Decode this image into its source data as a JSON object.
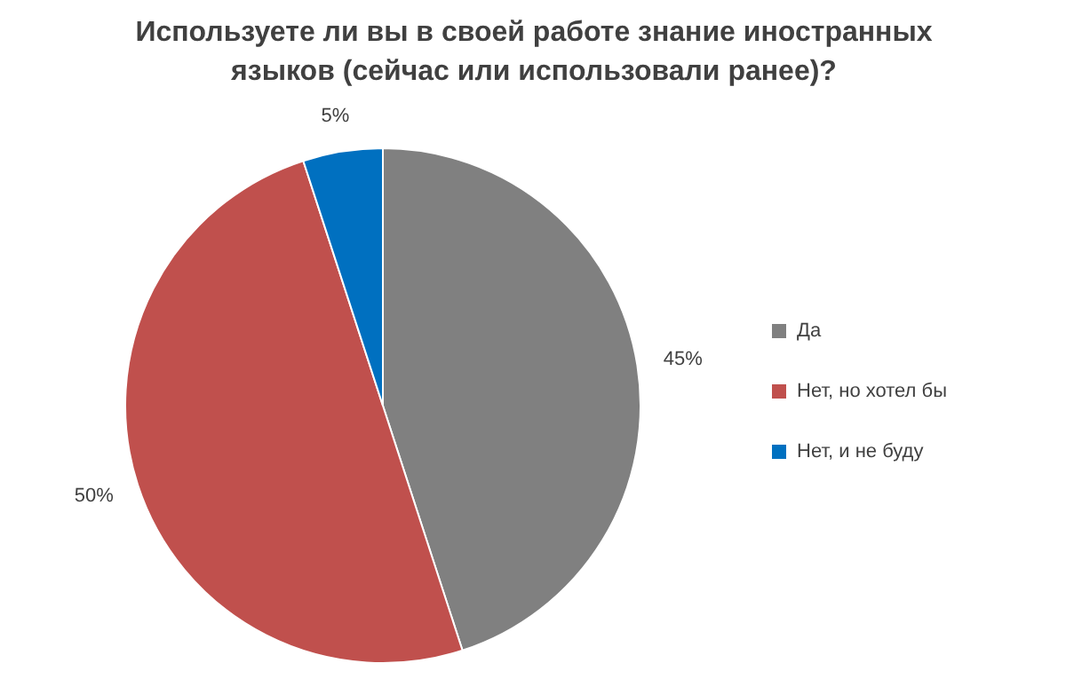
{
  "chart_data": {
    "type": "pie",
    "title": "Используете ли вы в своей работе знание иностранных языков (сейчас или использовали ранее)?",
    "categories": [
      "Да",
      "Нет, но хотел бы",
      "Нет, и не буду"
    ],
    "values": [
      45,
      50,
      5
    ],
    "colors": [
      "#808080",
      "#c0504d",
      "#0070c0"
    ],
    "value_labels": [
      "45%",
      "50%",
      "5%"
    ],
    "legend": "right"
  }
}
